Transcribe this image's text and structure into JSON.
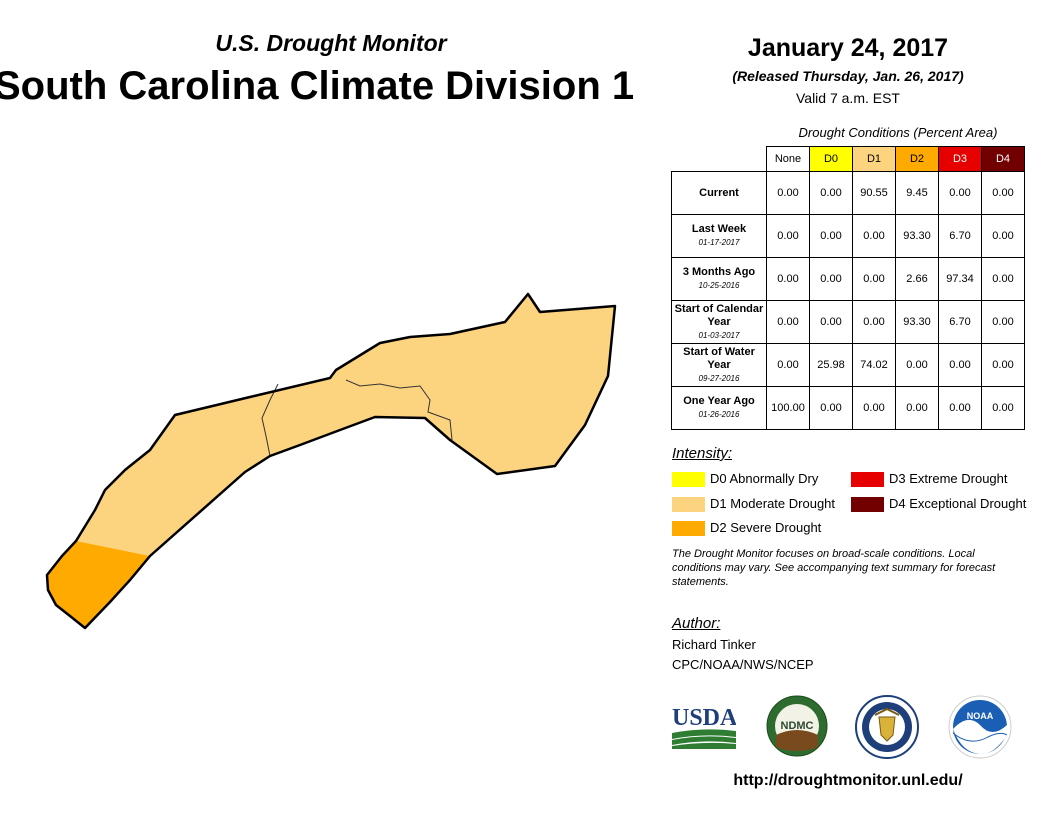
{
  "header": {
    "subtitle": "U.S. Drought Monitor",
    "title": "South Carolina Climate Division 1",
    "date": "January 24, 2017",
    "released": "(Released Thursday, Jan. 26, 2017)",
    "valid": "Valid 7 a.m. EST"
  },
  "table": {
    "caption": "Drought Conditions (Percent Area)",
    "columns": [
      "None",
      "D0",
      "D1",
      "D2",
      "D3",
      "D4"
    ],
    "column_colors": [
      "#ffffff",
      "#ffff00",
      "#fcd37f",
      "#ffaa00",
      "#e60000",
      "#730000"
    ],
    "column_text_colors": [
      "#000000",
      "#000000",
      "#000000",
      "#000000",
      "#ffffff",
      "#ffffff"
    ],
    "rows": [
      {
        "label": "Current",
        "date": "",
        "values": [
          "0.00",
          "0.00",
          "90.55",
          "9.45",
          "0.00",
          "0.00"
        ]
      },
      {
        "label": "Last Week",
        "date": "01-17-2017",
        "values": [
          "0.00",
          "0.00",
          "0.00",
          "93.30",
          "6.70",
          "0.00"
        ]
      },
      {
        "label": "3 Months Ago",
        "date": "10-25-2016",
        "values": [
          "0.00",
          "0.00",
          "0.00",
          "2.66",
          "97.34",
          "0.00"
        ]
      },
      {
        "label": "Start of Calendar Year",
        "date": "01-03-2017",
        "values": [
          "0.00",
          "0.00",
          "0.00",
          "93.30",
          "6.70",
          "0.00"
        ]
      },
      {
        "label": "Start of Water Year",
        "date": "09-27-2016",
        "values": [
          "0.00",
          "25.98",
          "74.02",
          "0.00",
          "0.00",
          "0.00"
        ]
      },
      {
        "label": "One Year Ago",
        "date": "01-26-2016",
        "values": [
          "100.00",
          "0.00",
          "0.00",
          "0.00",
          "0.00",
          "0.00"
        ]
      }
    ]
  },
  "legend": {
    "heading": "Intensity:",
    "items": [
      {
        "label": "D0 Abnormally Dry",
        "color": "#ffff00"
      },
      {
        "label": "D1 Moderate Drought",
        "color": "#fcd37f"
      },
      {
        "label": "D2 Severe Drought",
        "color": "#ffaa00"
      },
      {
        "label": "D3 Extreme Drought",
        "color": "#e60000"
      },
      {
        "label": "D4 Exceptional Drought",
        "color": "#730000"
      }
    ]
  },
  "disclaimer": "The Drought Monitor focuses on broad-scale conditions. Local conditions may vary. See accompanying text summary for forecast statements.",
  "author": {
    "heading": "Author:",
    "name": "Richard Tinker",
    "org": "CPC/NOAA/NWS/NCEP"
  },
  "logos": {
    "usda": "USDA",
    "ndmc": "NDMC",
    "noaa": "NOAA"
  },
  "map": {
    "region": "South Carolina Climate Division 1",
    "areas": [
      {
        "category": "D1",
        "color": "#fcd37f"
      },
      {
        "category": "D2",
        "color": "#ffaa00"
      }
    ]
  },
  "url": "http://droughtmonitor.unl.edu/"
}
